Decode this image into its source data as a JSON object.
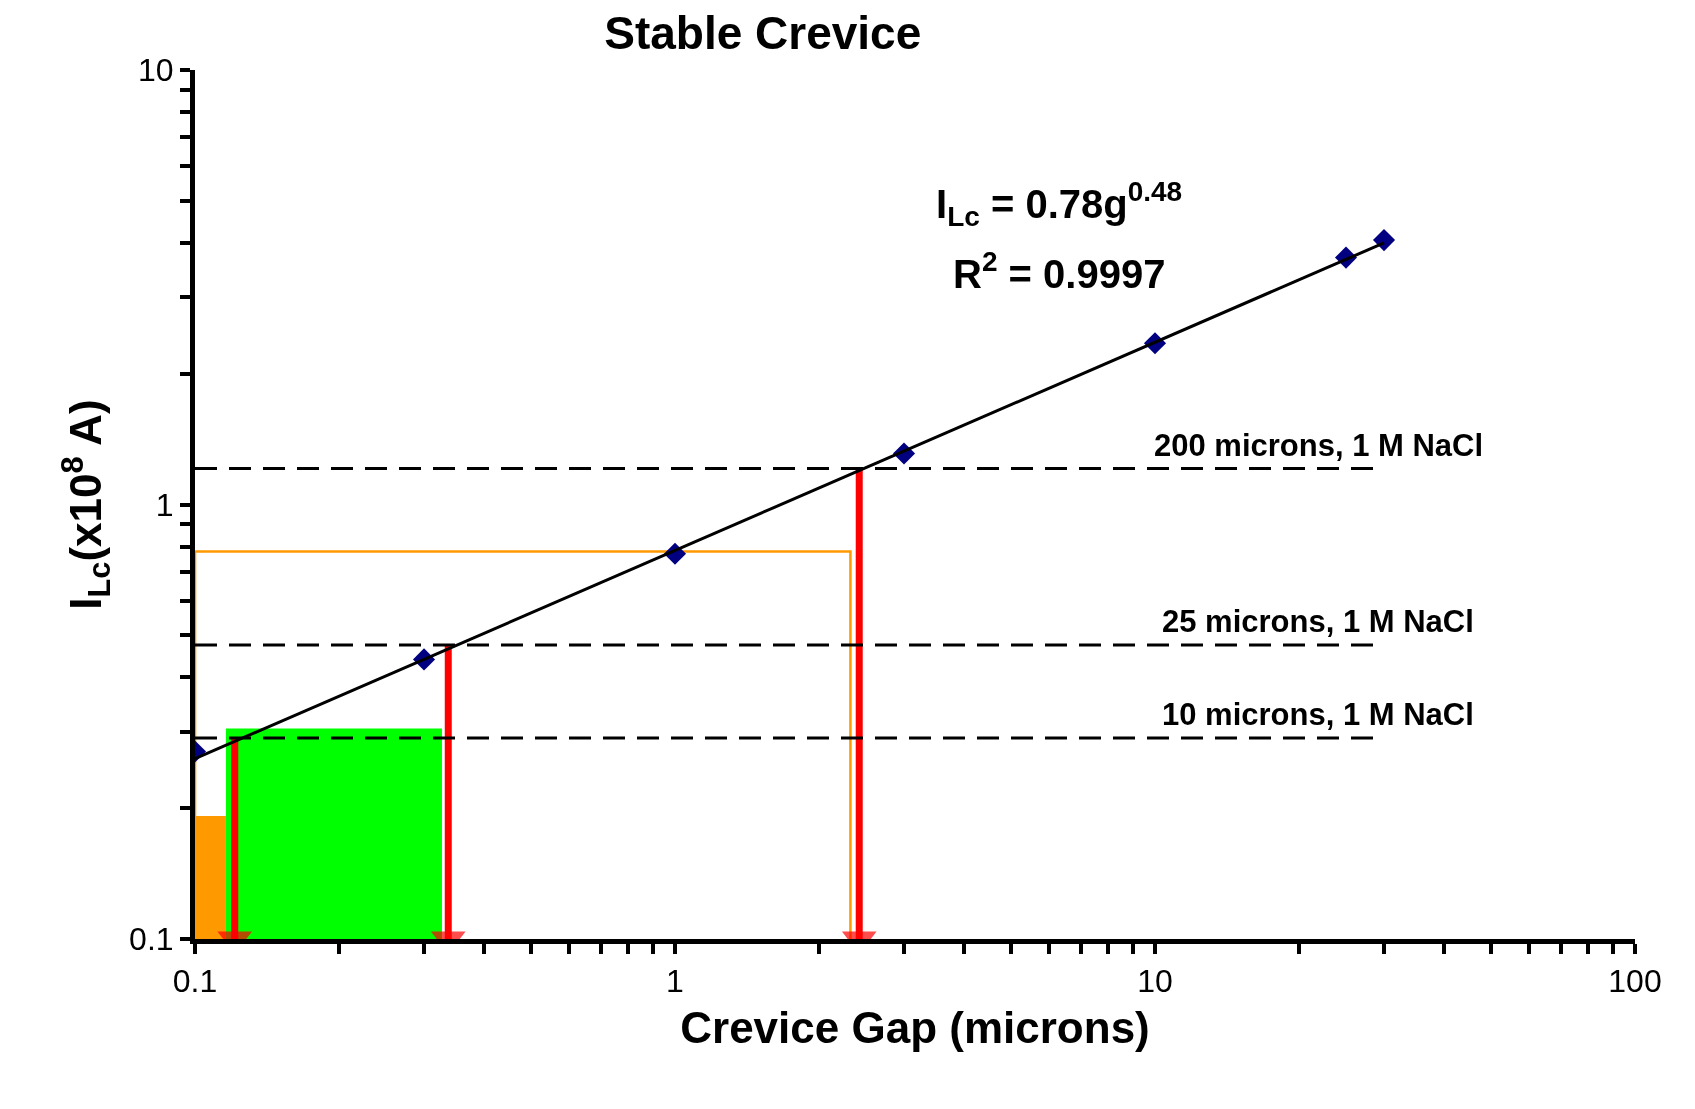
{
  "chart_data": {
    "type": "scatter",
    "title": "Stable Crevice",
    "xlabel": "Crevice Gap (microns)",
    "ylabel": "I$_{Lc}$(x10$^{8}$ A)",
    "log": "xy",
    "marker": "diamond",
    "xlim": [
      0.1,
      100
    ],
    "ylim": [
      0.1,
      10
    ],
    "xticks": [
      {
        "value": 0.1,
        "label": "0.1"
      },
      {
        "value": 0.2,
        "label": null
      },
      {
        "value": 0.3,
        "label": null
      },
      {
        "value": 0.4,
        "label": null
      },
      {
        "value": 0.5,
        "label": null
      },
      {
        "value": 0.6,
        "label": null
      },
      {
        "value": 0.7,
        "label": null
      },
      {
        "value": 0.8,
        "label": null
      },
      {
        "value": 0.9,
        "label": null
      },
      1,
      {
        "value": 2,
        "label": null
      },
      {
        "value": 3,
        "label": null
      },
      {
        "value": 4,
        "label": null
      },
      {
        "value": 5,
        "label": null
      },
      {
        "value": 6,
        "label": null
      },
      {
        "value": 7,
        "label": null
      },
      {
        "value": 8,
        "label": null
      },
      {
        "value": 9,
        "label": null
      },
      10,
      {
        "value": 20,
        "label": null
      },
      {
        "value": 30,
        "label": null
      },
      {
        "value": 40,
        "label": null
      },
      {
        "value": 50,
        "label": null
      },
      {
        "value": 60,
        "label": null
      },
      {
        "value": 70,
        "label": null
      },
      {
        "value": 80,
        "label": null
      },
      {
        "value": 90,
        "label": null
      },
      100
    ],
    "yticks": [
      {
        "value": 0.1,
        "label": "0.1"
      },
      {
        "value": 0.2,
        "label": null
      },
      {
        "value": 0.3,
        "label": null
      },
      {
        "value": 0.4,
        "label": null
      },
      {
        "value": 0.5,
        "label": null
      },
      {
        "value": 0.6,
        "label": null
      },
      {
        "value": 0.7,
        "label": null
      },
      {
        "value": 0.8,
        "label": null
      },
      {
        "value": 0.9,
        "label": null
      },
      1,
      {
        "value": 2,
        "label": null
      },
      {
        "value": 3,
        "label": null
      },
      {
        "value": 4,
        "label": null
      },
      {
        "value": 5,
        "label": null
      },
      {
        "value": 6,
        "label": null
      },
      {
        "value": 7,
        "label": null
      },
      {
        "value": 8,
        "label": null
      },
      {
        "value": 9,
        "label": null
      },
      10
    ],
    "series": [
      {
        "type": "area",
        "marker": "none",
        "color": "#ff9900",
        "x": [
          0.1,
          0.116
        ],
        "values": [
          0.192,
          0.192
        ]
      },
      {
        "type": "area",
        "marker": "none",
        "color": "#00ff00",
        "x": [
          0.116,
          0.327
        ],
        "values": [
          0.305,
          0.305
        ]
      },
      {
        "type": "line",
        "marker": "none",
        "color": "#ff9900",
        "x": [
          0.1,
          0.1,
          2.32,
          2.32
        ],
        "values": [
          0.1,
          0.78,
          0.78,
          0.1
        ]
      },
      {
        "type": "line",
        "color": "#ff0000",
        "marker": "triangle",
        "x": [
          0.121,
          0.121
        ],
        "values": [
          0.29,
          0.1
        ]
      },
      {
        "type": "line",
        "color": "#ff0000",
        "marker": "triangle",
        "x": [
          0.337,
          0.337
        ],
        "values": [
          0.475,
          0.1
        ]
      },
      {
        "type": "line",
        "color": "#ff0000",
        "marker": "triangle",
        "x": [
          2.42,
          2.42
        ],
        "values": [
          1.21,
          0.1
        ]
      },
      {
        "color": "#000080",
        "x": [
          0.1,
          0.3,
          1,
          3,
          10,
          25,
          30
        ],
        "values": [
          0.27,
          0.44,
          0.77,
          1.31,
          2.35,
          3.7,
          4.06
        ]
      },
      {
        "type": "line",
        "marker": "none",
        "color": "#000000",
        "x": [
          0.1,
          30
        ],
        "values": [
          0.26,
          4.0
        ]
      }
    ],
    "ref_lines": [
      {
        "axis": "y",
        "value": 1.21,
        "label": "200 microns, 1 M NaCl",
        "color": "#000000",
        "line_style": "dashed"
      },
      {
        "axis": "y",
        "value": 0.475,
        "label": "25 microns, 1 M NaCl",
        "color": "#000000",
        "line_style": "dashed"
      },
      {
        "axis": "y",
        "value": 0.29,
        "label": "10 microns, 1 M NaCl",
        "color": "#000000",
        "line_style": "dashed"
      }
    ],
    "annotations": [
      "I$_{Lc}$ = 0.78g$^{0.48}$",
      "R$^{2}$ = 0.9997"
    ]
  }
}
